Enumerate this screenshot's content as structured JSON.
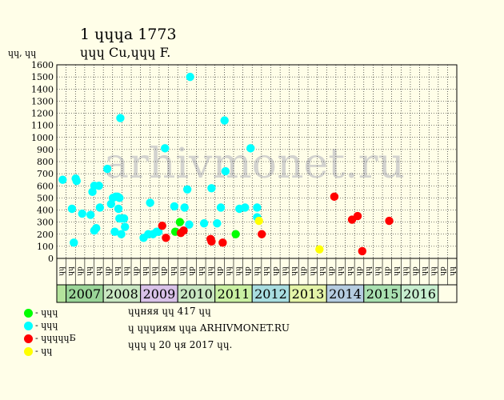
{
  "header": {
    "title": "1 ɥɥɥа 1773",
    "subtitle": "ɥɥɥ Cu,ɥɥɥ F."
  },
  "watermark": "arhivmonet.ru",
  "legend": [
    {
      "color": "#00ff00",
      "label": "- ɥɥɥ"
    },
    {
      "color": "#00ffff",
      "label": "- ɥɥɥ"
    },
    {
      "color": "#ff0000",
      "label": "- ɥɥɥɥɥБ"
    },
    {
      "color": "#ffff00",
      "label": "- ɥɥ"
    }
  ],
  "info": {
    "line1": "ɥɥняя ɥɥ 417 ɥɥ",
    "line2": "ɥ ɥɥɥиям ɥɥа ARHIVMONET.RU",
    "line3": "ɥɥɥ ɥ 20 ɥя 2017 ɥɥ."
  },
  "colors": {
    "background": "#fffee8",
    "grid": "#000000"
  },
  "chart_data": {
    "type": "scatter",
    "ylabel": "ɥɥ, ɥɥ",
    "ylim": [
      0,
      1600
    ],
    "yticks": [
      0,
      100,
      200,
      300,
      400,
      500,
      600,
      700,
      800,
      900,
      1000,
      1100,
      1200,
      1300,
      1400,
      1500,
      1600
    ],
    "grid": true,
    "x_units": "quarter index (0 = first column)",
    "quarters": [
      "ɥɥ",
      "ɥɥ",
      "ɥр",
      "ɥɥ",
      "ɥɥ",
      "ɥр",
      "ɥɥ",
      "ɥɥ",
      "ɥр",
      "ɥɥ",
      "ɥɥ",
      "ɥр",
      "ɥɥ",
      "ɥɥ",
      "ɥр",
      "ɥɥ",
      "ɥɥ",
      "ɥр",
      "ɥɥ",
      "ɥɥ",
      "ɥр",
      "ɥɥ",
      "ɥɥ",
      "ɥр",
      "ɥɥ",
      "ɥɥ",
      "ɥр",
      "ɥɥ",
      "ɥɥ",
      "ɥр",
      "ɥɥ",
      "ɥɥ",
      "ɥр",
      "ɥɥ",
      "ɥɥ",
      "ɥр",
      "ɥɥ",
      "ɥɥ",
      "ɥр",
      "ɥɥ",
      "ɥɥ",
      "ɥр",
      "ɥɥ"
    ],
    "years": [
      {
        "label": "",
        "quarters": 1,
        "color": "#b4e39c"
      },
      {
        "label": "2007",
        "quarters": 4,
        "color": "#9ad598"
      },
      {
        "label": "2008",
        "quarters": 4,
        "color": "#c9e7c2"
      },
      {
        "label": "2009",
        "quarters": 4,
        "color": "#d9c2e8"
      },
      {
        "label": "2010",
        "quarters": 4,
        "color": "#c9e7c2"
      },
      {
        "label": "2011",
        "quarters": 4,
        "color": "#c9f0a2"
      },
      {
        "label": "2012",
        "quarters": 4,
        "color": "#a8dde0"
      },
      {
        "label": "2013",
        "quarters": 4,
        "color": "#e4f4a8"
      },
      {
        "label": "2014",
        "quarters": 4,
        "color": "#b5cce0"
      },
      {
        "label": "2015",
        "quarters": 4,
        "color": "#a9e0b0"
      },
      {
        "label": "2016",
        "quarters": 4,
        "color": "#c7eecf"
      },
      {
        "label": "",
        "quarters": 2,
        "color": "#fffee8"
      }
    ],
    "series": [
      {
        "color": "#00ff00",
        "points": [
          [
            12.3,
            220
          ],
          [
            12.8,
            300
          ],
          [
            18.8,
            200
          ]
        ]
      },
      {
        "color": "#00ffff",
        "points": [
          [
            0.2,
            650
          ],
          [
            1.2,
            410
          ],
          [
            1.4,
            130
          ],
          [
            1.6,
            660
          ],
          [
            1.7,
            640
          ],
          [
            2.3,
            370
          ],
          [
            3.2,
            360
          ],
          [
            3.4,
            550
          ],
          [
            3.6,
            600
          ],
          [
            3.6,
            230
          ],
          [
            3.8,
            250
          ],
          [
            4.1,
            600
          ],
          [
            4.2,
            420
          ],
          [
            5.0,
            740
          ],
          [
            5.4,
            450
          ],
          [
            5.6,
            500
          ],
          [
            5.8,
            220
          ],
          [
            5.9,
            510
          ],
          [
            6.1,
            510
          ],
          [
            6.3,
            500
          ],
          [
            6.2,
            410
          ],
          [
            6.3,
            330
          ],
          [
            6.4,
            1160
          ],
          [
            6.5,
            200
          ],
          [
            6.6,
            330
          ],
          [
            6.8,
            330
          ],
          [
            6.9,
            260
          ],
          [
            8.9,
            170
          ],
          [
            9.4,
            200
          ],
          [
            9.6,
            460
          ],
          [
            9.9,
            200
          ],
          [
            10.3,
            220
          ],
          [
            10.5,
            220
          ],
          [
            11.2,
            910
          ],
          [
            12.2,
            430
          ],
          [
            13.3,
            420
          ],
          [
            13.6,
            570
          ],
          [
            13.8,
            280
          ],
          [
            13.9,
            1500
          ],
          [
            15.4,
            290
          ],
          [
            16.2,
            580
          ],
          [
            16.8,
            290
          ],
          [
            17.2,
            420
          ],
          [
            17.6,
            1140
          ],
          [
            17.7,
            720
          ],
          [
            19.2,
            410
          ],
          [
            19.8,
            420
          ],
          [
            20.4,
            910
          ],
          [
            21.1,
            420
          ],
          [
            21.1,
            340
          ]
        ]
      },
      {
        "color": "#ff0000",
        "points": [
          [
            10.9,
            270
          ],
          [
            11.3,
            170
          ],
          [
            12.9,
            210
          ],
          [
            13.2,
            230
          ],
          [
            16.1,
            160
          ],
          [
            16.2,
            140
          ],
          [
            17.4,
            130
          ],
          [
            21.6,
            200
          ],
          [
            29.4,
            510
          ],
          [
            31.3,
            320
          ],
          [
            31.9,
            350
          ],
          [
            32.4,
            60
          ],
          [
            35.3,
            310
          ]
        ]
      },
      {
        "color": "#ffff00",
        "points": [
          [
            21.3,
            310
          ],
          [
            27.8,
            75
          ]
        ]
      }
    ]
  }
}
